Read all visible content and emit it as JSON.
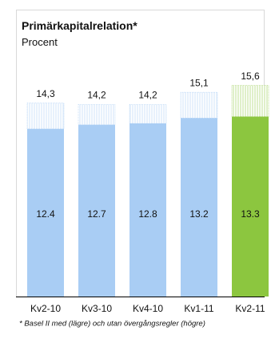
{
  "chart_data": {
    "type": "stacked_bar",
    "title": "Primärkapitalrelation*",
    "subtitle": "Procent",
    "categories": [
      "Kv2-10",
      "Kv3-10",
      "Kv4-10",
      "Kv1-11",
      "Kv2-11"
    ],
    "series": [
      {
        "colors": [
          "#a9cdf4",
          "#a9cdf4",
          "#a9cdf4",
          "#a9cdf4",
          "#8cc63f"
        ],
        "values": [
          12.4,
          12.7,
          12.8,
          13.2,
          13.3
        ]
      },
      {
        "colors": [
          "#a9cdf4",
          "#a9cdf4",
          "#a9cdf4",
          "#a9cdf4",
          "#8cc63f"
        ],
        "hatched": true,
        "values": [
          1.9,
          1.5,
          1.4,
          1.9,
          2.3
        ]
      }
    ],
    "total_labels": [
      "14,3",
      "14,2",
      "14,2",
      "15,1",
      "15,6"
    ],
    "ylim": [
      0,
      16
    ],
    "footnote": "* Basel II med (lägre) och utan övergångsregler (högre)"
  }
}
